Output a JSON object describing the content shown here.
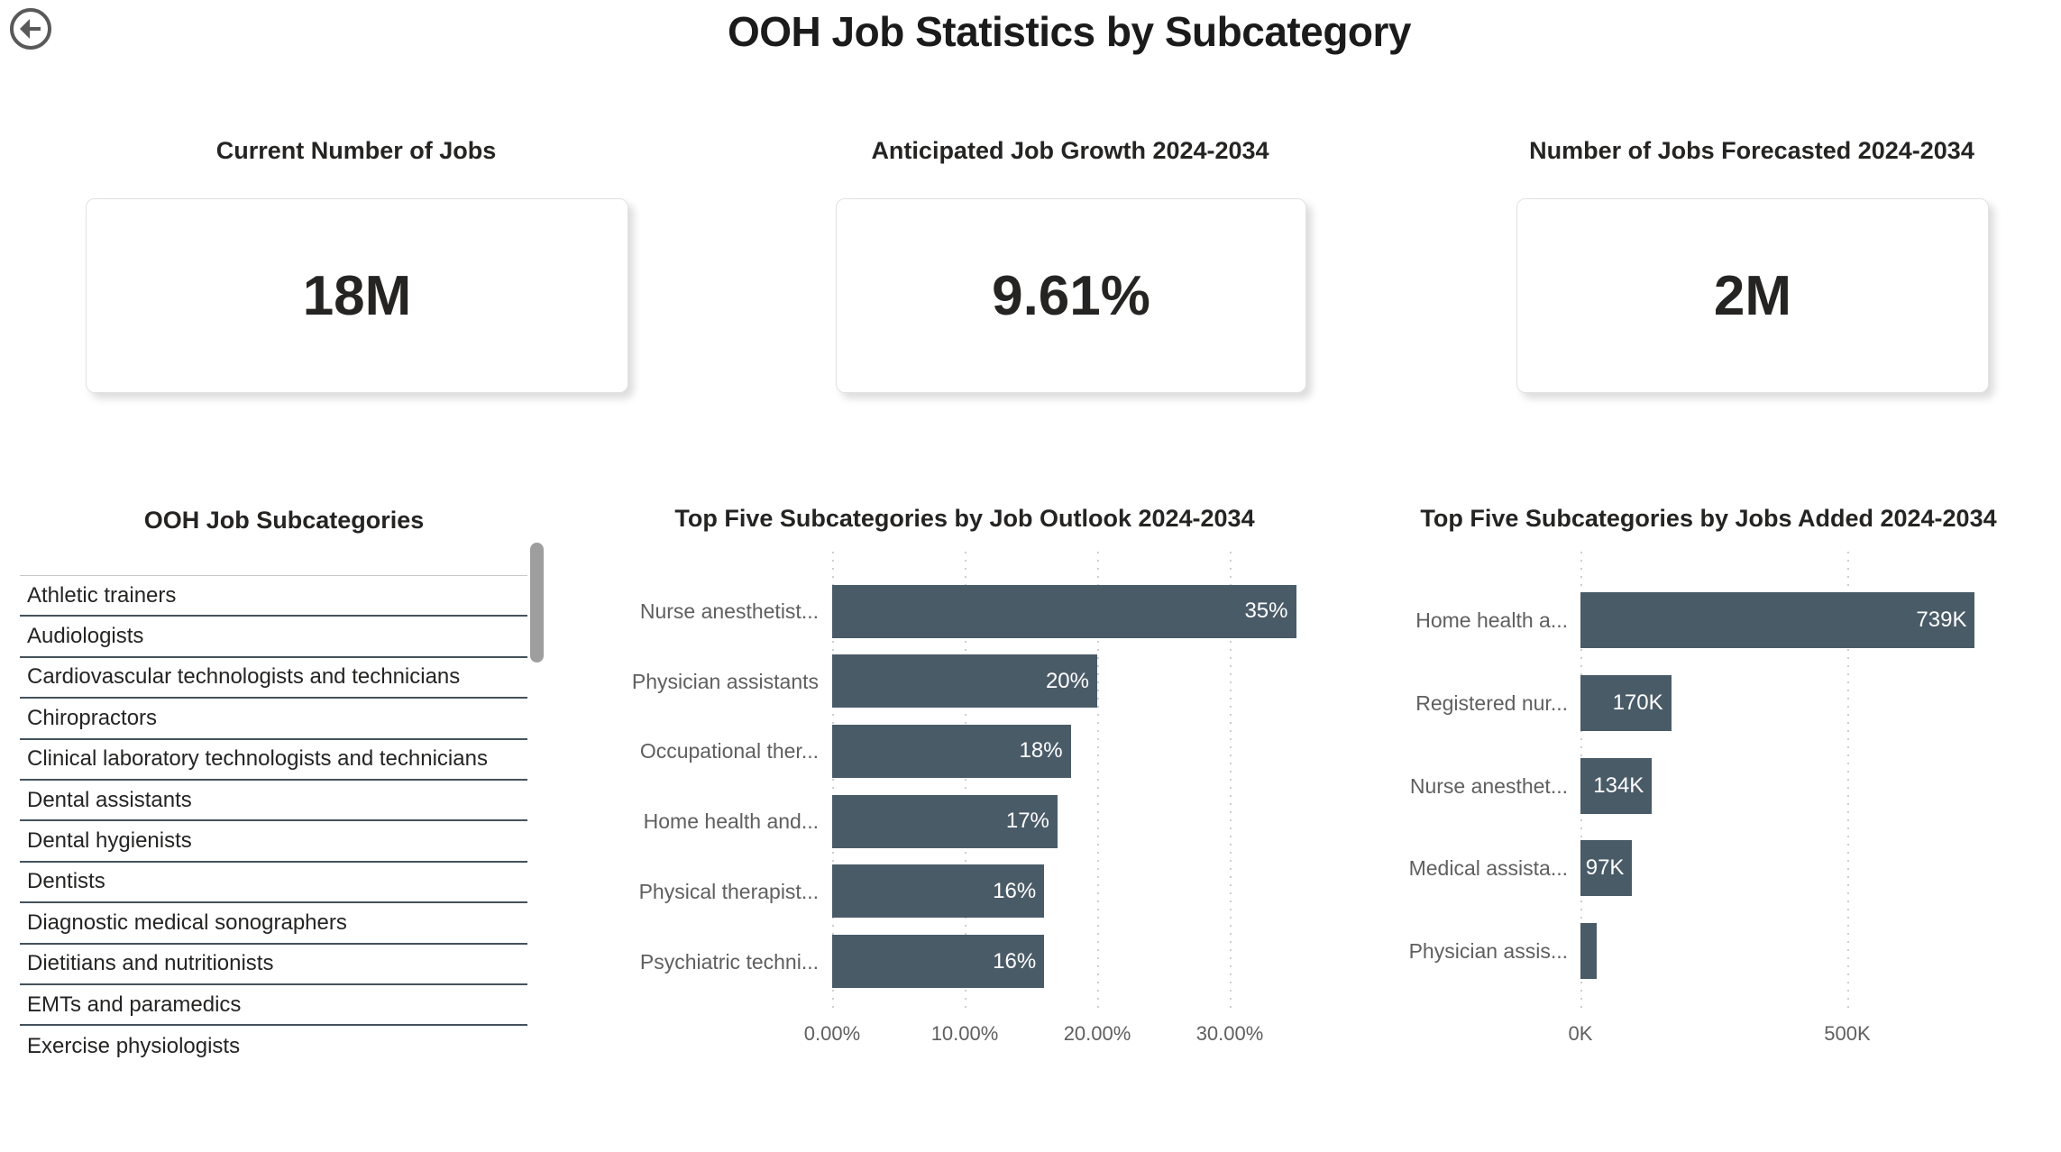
{
  "header": {
    "title": "OOH Job Statistics by Subcategory",
    "back_icon": "arrow-left-circle-icon"
  },
  "kpis": [
    {
      "label": "Current Number of Jobs",
      "value": "18M"
    },
    {
      "label": "Anticipated Job Growth 2024-2034",
      "value": "9.61%"
    },
    {
      "label": "Number of Jobs Forecasted 2024-2034",
      "value": "2M"
    }
  ],
  "subcategory_list": {
    "title": "OOH Job Subcategories",
    "items": [
      "Athletic trainers",
      "Audiologists",
      "Cardiovascular technologists and technicians",
      "Chiropractors",
      "Clinical laboratory technologists and technicians",
      "Dental assistants",
      "Dental hygienists",
      "Dentists",
      "Diagnostic medical sonographers",
      "Dietitians and nutritionists",
      "EMTs and paramedics",
      "Exercise physiologists"
    ]
  },
  "chart_data": [
    {
      "type": "bar",
      "orientation": "horizontal",
      "title": "Top Five Subcategories by Job Outlook 2024-2034",
      "categories": [
        "Nurse anesthetist...",
        "Physician assistants",
        "Occupational ther...",
        "Home health and...",
        "Physical therapist...",
        "Psychiatric techni..."
      ],
      "values": [
        35,
        20,
        18,
        17,
        16,
        16
      ],
      "value_labels": [
        "35%",
        "20%",
        "18%",
        "17%",
        "16%",
        "16%"
      ],
      "xlabel": "",
      "ylabel": "",
      "x_ticks": [
        "0.00%",
        "10.00%",
        "20.00%",
        "30.00%"
      ],
      "x_tick_values": [
        0,
        10,
        20,
        30
      ],
      "xlim": [
        0,
        35.8
      ],
      "grid": "vertical-dotted",
      "legend": "none"
    },
    {
      "type": "bar",
      "orientation": "horizontal",
      "title": "Top Five Subcategories by Jobs Added 2024-2034",
      "categories": [
        "Home health a...",
        "Registered nur...",
        "Nurse anesthet...",
        "Medical assista...",
        "Physician assis..."
      ],
      "values": [
        739,
        170,
        134,
        97,
        31
      ],
      "value_labels": [
        "739K",
        "170K",
        "134K",
        "97K",
        ""
      ],
      "unit": "thousands of jobs",
      "note": "last bar value label not shown in pixels; width implies ~31K",
      "xlabel": "",
      "ylabel": "",
      "x_ticks": [
        "0K",
        "500K"
      ],
      "x_tick_values": [
        0,
        500
      ],
      "xlim": [
        0,
        900
      ],
      "grid": "vertical-dotted",
      "legend": "none"
    }
  ],
  "colors": {
    "bar": "#4a5b68",
    "list_separator": "#44525c",
    "list_top_border": "#c9c9c9",
    "scrollbar_thumb": "#9e9e9e",
    "text_primary": "#252423",
    "text_secondary": "#5f5f5f",
    "back_icon": "#595959",
    "background": "#ffffff"
  }
}
